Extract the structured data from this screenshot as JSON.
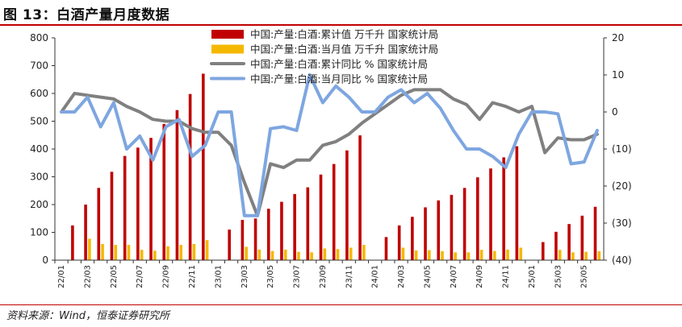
{
  "title": "图 13：白酒产量月度数据",
  "source": "资料来源：Wind，恒泰证券研究所",
  "colors": {
    "bar_cum": "#c00000",
    "bar_month": "#f5b800",
    "line_cum": "#808080",
    "line_month": "#7ea6e0",
    "rule": "#c00000"
  },
  "chart_data": {
    "type": "bar+line",
    "x": [
      "22/01",
      "22/02",
      "22/03",
      "22/04",
      "22/05",
      "22/06",
      "22/07",
      "22/08",
      "22/09",
      "22/10",
      "22/11",
      "22/12",
      "23/01",
      "23/02",
      "23/03",
      "23/04",
      "23/05",
      "23/06",
      "23/07",
      "23/08",
      "23/09",
      "23/10",
      "23/11",
      "23/12",
      "24/01",
      "24/02",
      "24/03",
      "24/04",
      "24/05",
      "24/06",
      "24/07",
      "24/08",
      "24/09",
      "24/10",
      "24/11",
      "24/12",
      "25/01",
      "25/02",
      "25/03",
      "25/04",
      "25/05",
      "25/06"
    ],
    "x_tick_labels": [
      "22/01",
      "22/03",
      "22/05",
      "22/07",
      "22/09",
      "22/11",
      "23/01",
      "23/03",
      "23/05",
      "23/07",
      "23/09",
      "23/11",
      "24/01",
      "24/03",
      "24/05",
      "24/07",
      "24/09",
      "24/11",
      "25/01",
      "25/03",
      "25/05"
    ],
    "left_axis": {
      "ylim": [
        0,
        800
      ],
      "ticks": [
        "0",
        "100",
        "200",
        "300",
        "400",
        "500",
        "600",
        "700",
        "800"
      ]
    },
    "right_axis": {
      "ylim": [
        -40,
        20
      ],
      "ticks": [
        "20",
        "10",
        "0",
        "(10)",
        "(20)",
        "(30)",
        "(40)"
      ],
      "tick_values": [
        20,
        10,
        0,
        -10,
        -20,
        -30,
        -40
      ]
    },
    "series": [
      {
        "name": "中国:产量:白酒:累计值 万千升 国家统计局",
        "kind": "bar",
        "axis": "left",
        "values": [
          null,
          125,
          200,
          260,
          318,
          375,
          405,
          440,
          490,
          540,
          598,
          671,
          null,
          110,
          145,
          150,
          185,
          210,
          238,
          262,
          308,
          346,
          395,
          449,
          null,
          83,
          125,
          156,
          190,
          215,
          235,
          260,
          298,
          330,
          370,
          410,
          null,
          65,
          102,
          130,
          160,
          192
        ]
      },
      {
        "name": "中国:产量:白酒:当月值 万千升 国家统计局",
        "kind": "bar",
        "axis": "left",
        "values": [
          null,
          null,
          77,
          58,
          55,
          55,
          37,
          34,
          50,
          55,
          58,
          72,
          null,
          null,
          48,
          38,
          33,
          38,
          30,
          28,
          42,
          40,
          45,
          55,
          null,
          null,
          45,
          35,
          36,
          32,
          28,
          28,
          37,
          33,
          38,
          45,
          null,
          null,
          37,
          28,
          30,
          32
        ]
      },
      {
        "name": "中国:产量:白酒:累计同比 % 国家统计局",
        "kind": "line",
        "axis": "right",
        "values": [
          0,
          5,
          4.5,
          4,
          3.5,
          1.5,
          0,
          -2,
          -2.5,
          -2.5,
          -4.5,
          -5.5,
          -5.5,
          -9,
          -19,
          -28,
          -14,
          -15,
          -13,
          -13,
          -9,
          -8,
          -6,
          -3,
          -0.5,
          2,
          4.5,
          6,
          6,
          6,
          3.5,
          2,
          -2,
          2.5,
          1.5,
          0,
          1.5,
          -11,
          -7,
          -7.5,
          -7.5,
          -6
        ]
      },
      {
        "name": "中国:产量:白酒:当月同比 % 国家统计局",
        "kind": "line",
        "axis": "right",
        "values": [
          0,
          0,
          4,
          -4,
          2.5,
          -10,
          -6.5,
          -13,
          -4,
          -2,
          -12,
          -9,
          0,
          0,
          -28,
          -28,
          -4.5,
          -4,
          -5,
          10,
          2.5,
          7,
          4,
          0,
          0,
          4,
          6,
          2.5,
          5,
          1,
          -5,
          -10,
          -10,
          -12,
          -15,
          -6,
          0,
          0,
          -0.5,
          -14,
          -13.5,
          -5
        ]
      }
    ]
  }
}
